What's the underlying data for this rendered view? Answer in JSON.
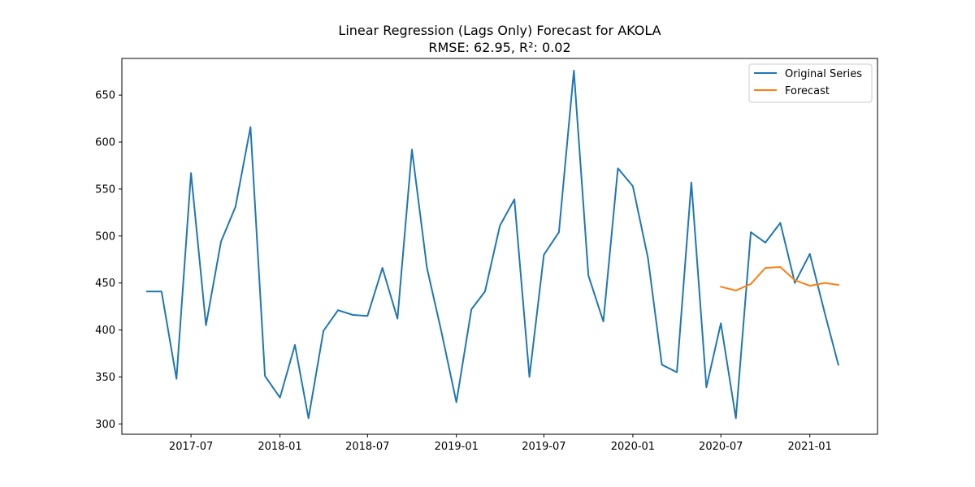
{
  "chart_data": {
    "type": "line",
    "title": "Linear Regression (Lags Only) Forecast for AKOLA",
    "subtitle": "RMSE: 62.95, R²: 0.02",
    "xlabel": "",
    "ylabel": "",
    "xlim": [
      "2017-02-08",
      "2021-05-21"
    ],
    "ylim": [
      289,
      689
    ],
    "x_ticks": [
      "2017-07",
      "2018-01",
      "2018-07",
      "2019-01",
      "2019-07",
      "2020-01",
      "2020-07",
      "2021-01"
    ],
    "y_ticks": [
      300,
      350,
      400,
      450,
      500,
      550,
      600,
      650
    ],
    "grid": false,
    "legend_position": "top-right",
    "series": [
      {
        "name": "Original Series",
        "color": "#1f77b4",
        "x": [
          "2017-04-01",
          "2017-05-01",
          "2017-06-01",
          "2017-07-01",
          "2017-08-01",
          "2017-09-01",
          "2017-10-01",
          "2017-11-01",
          "2017-12-01",
          "2018-01-01",
          "2018-02-01",
          "2018-03-01",
          "2018-04-01",
          "2018-05-01",
          "2018-06-01",
          "2018-07-01",
          "2018-08-01",
          "2018-09-01",
          "2018-10-01",
          "2018-11-01",
          "2018-12-01",
          "2019-01-01",
          "2019-02-01",
          "2019-03-01",
          "2019-04-01",
          "2019-05-01",
          "2019-06-01",
          "2019-07-01",
          "2019-08-01",
          "2019-09-01",
          "2019-10-01",
          "2019-11-01",
          "2019-12-01",
          "2020-01-01",
          "2020-02-01",
          "2020-03-01",
          "2020-04-01",
          "2020-05-01",
          "2020-06-01",
          "2020-07-01",
          "2020-08-01",
          "2020-09-01",
          "2020-10-01",
          "2020-11-01",
          "2020-12-01",
          "2021-01-01",
          "2021-02-01",
          "2021-03-01"
        ],
        "y": [
          441,
          441,
          348,
          567,
          405,
          494,
          531,
          616,
          351,
          328,
          384,
          306,
          399,
          421,
          416,
          415,
          466,
          412,
          592,
          466,
          398,
          323,
          422,
          441,
          511,
          539,
          350,
          480,
          504,
          676,
          458,
          409,
          572,
          553,
          477,
          363,
          355,
          557,
          339,
          407,
          306,
          504,
          493,
          514,
          450,
          481,
          418,
          363
        ]
      },
      {
        "name": "Forecast",
        "color": "#ff7f0e",
        "x": [
          "2020-07-01",
          "2020-08-01",
          "2020-09-01",
          "2020-10-01",
          "2020-11-01",
          "2020-12-01",
          "2021-01-01",
          "2021-02-01",
          "2021-03-01"
        ],
        "y": [
          446,
          442,
          449,
          466,
          467,
          453,
          447,
          450,
          448
        ]
      }
    ]
  }
}
